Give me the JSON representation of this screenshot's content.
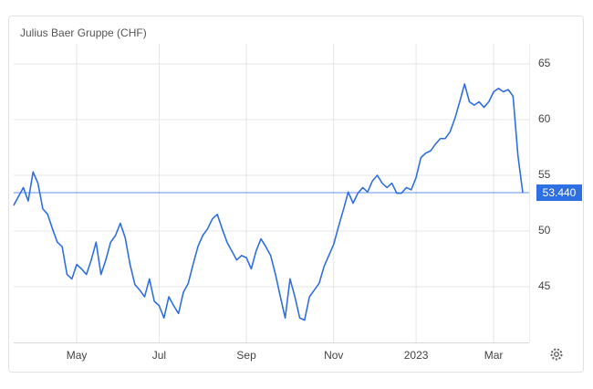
{
  "chart_data": {
    "type": "line",
    "title": "Julius Baer Gruppe (CHF)",
    "color": "#2f6fe4",
    "categories": [
      null,
      null,
      null,
      null,
      null,
      null,
      null,
      null,
      null,
      null,
      null,
      null,
      null,
      "May",
      null,
      null,
      null,
      null,
      null,
      null,
      null,
      null,
      null,
      null,
      null,
      null,
      null,
      null,
      null,
      null,
      "Jul",
      null,
      null,
      null,
      null,
      null,
      null,
      null,
      null,
      null,
      null,
      null,
      null,
      null,
      null,
      null,
      null,
      null,
      "Sep",
      null,
      null,
      null,
      null,
      null,
      null,
      null,
      null,
      null,
      null,
      null,
      null,
      null,
      null,
      null,
      null,
      null,
      "Nov",
      null,
      null,
      null,
      null,
      null,
      null,
      null,
      null,
      null,
      null,
      null,
      null,
      null,
      null,
      null,
      null,
      "2023",
      null,
      null,
      null,
      null,
      null,
      null,
      null,
      null,
      null,
      null,
      null,
      null,
      null,
      null,
      null,
      "Mar",
      null,
      null,
      null,
      null,
      null,
      null
    ],
    "values": [
      52.3,
      53.1,
      53.9,
      52.7,
      55.3,
      54.3,
      52.0,
      51.5,
      50.2,
      49.0,
      48.6,
      46.1,
      45.7,
      47.0,
      46.6,
      46.1,
      47.4,
      49.0,
      46.1,
      47.4,
      49.0,
      49.6,
      50.7,
      49.4,
      47.0,
      45.2,
      44.7,
      44.1,
      45.7,
      43.7,
      43.3,
      42.2,
      44.1,
      43.3,
      42.6,
      44.5,
      45.3,
      47.0,
      48.6,
      49.6,
      50.2,
      51.1,
      51.5,
      50.2,
      49.0,
      48.2,
      47.4,
      47.8,
      47.6,
      46.6,
      48.2,
      49.3,
      48.6,
      47.8,
      46.1,
      44.1,
      42.2,
      45.7,
      44.1,
      42.2,
      42.0,
      44.1,
      44.7,
      45.3,
      46.8,
      47.8,
      48.8,
      50.4,
      51.9,
      53.5,
      52.5,
      53.4,
      53.9,
      53.5,
      54.5,
      55.0,
      54.3,
      53.9,
      54.3,
      53.4,
      53.4,
      53.9,
      53.7,
      54.8,
      56.6,
      57.0,
      57.2,
      57.8,
      58.3,
      58.3,
      58.9,
      60.1,
      61.6,
      63.2,
      61.6,
      61.3,
      61.6,
      61.1,
      61.6,
      62.5,
      62.8,
      62.5,
      62.7,
      62.1,
      56.8,
      53.44
    ],
    "ylim": [
      40,
      67
    ],
    "yticks": [
      45,
      50,
      55,
      60,
      65
    ],
    "grid": true,
    "reference_line": {
      "value": 53.44,
      "label": "53.440"
    }
  }
}
